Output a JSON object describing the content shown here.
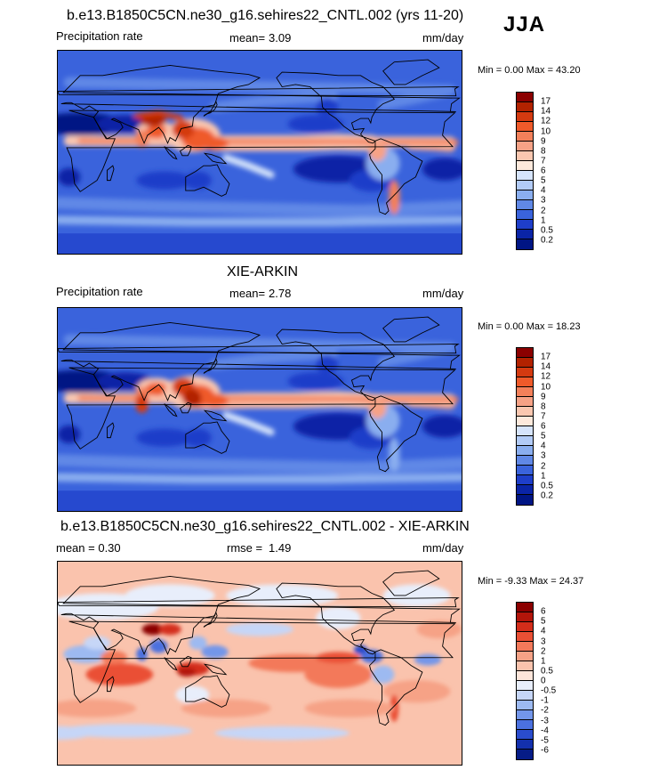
{
  "season": "JJA",
  "panels": [
    {
      "title": "b.e13.B1850C5CN.ne30_g16.sehires22_CNTL.002 (yrs 11-20)",
      "left_label": "Precipitation rate",
      "mean_label": "mean=",
      "mean_value": "3.09",
      "units": "mm/day",
      "minmax": "Min =   0.00 Max =  43.20",
      "map_field": "precip_model",
      "colorbar": {
        "labels": [
          "17",
          "14",
          "12",
          "10",
          "9",
          "8",
          "7",
          "6",
          "5",
          "4",
          "3",
          "2",
          "1",
          "0.5",
          "0.2"
        ],
        "colors": [
          "#8b0000",
          "#b22200",
          "#d43a10",
          "#ef5a2a",
          "#f3805a",
          "#f6a286",
          "#fac7b0",
          "#fde9dc",
          "#d6e4fb",
          "#b2cbf6",
          "#8aaeef",
          "#6088e6",
          "#3a63dc",
          "#1e3ec9",
          "#0a24a6",
          "#001584"
        ]
      }
    },
    {
      "title": "XIE-ARKIN",
      "left_label": "Precipitation rate",
      "mean_label": "mean=",
      "mean_value": "2.78",
      "units": "mm/day",
      "minmax": "Min =   0.00 Max =  18.23",
      "map_field": "precip_obs",
      "colorbar": {
        "labels": [
          "17",
          "14",
          "12",
          "10",
          "9",
          "8",
          "7",
          "6",
          "5",
          "4",
          "3",
          "2",
          "1",
          "0.5",
          "0.2"
        ],
        "colors": [
          "#8b0000",
          "#b22200",
          "#d43a10",
          "#ef5a2a",
          "#f3805a",
          "#f6a286",
          "#fac7b0",
          "#fde9dc",
          "#d6e4fb",
          "#b2cbf6",
          "#8aaeef",
          "#6088e6",
          "#3a63dc",
          "#1e3ec9",
          "#0a24a6",
          "#001584"
        ]
      }
    },
    {
      "title": "b.e13.B1850C5CN.ne30_g16.sehires22_CNTL.002 - XIE-ARKIN",
      "left_label": "mean =    0.30",
      "mean_label": "rmse =",
      "mean_value": "1.49",
      "units": "mm/day",
      "minmax": "Min =  -9.33 Max =  24.37",
      "map_field": "precip_diff",
      "colorbar": {
        "labels": [
          "6",
          "5",
          "4",
          "3",
          "2",
          "1",
          "0.5",
          "0",
          "-0.5",
          "-1",
          "-2",
          "-3",
          "-4",
          "-5",
          "-6"
        ],
        "colors": [
          "#8b0000",
          "#b3150a",
          "#d42d1a",
          "#ea4f34",
          "#f3795a",
          "#f6a286",
          "#fac3ad",
          "#fde5da",
          "#e8eefb",
          "#c6d6f7",
          "#9dbaf1",
          "#7396ea",
          "#4b71df",
          "#2a4ccd",
          "#1330ad",
          "#061c87"
        ]
      }
    }
  ]
}
